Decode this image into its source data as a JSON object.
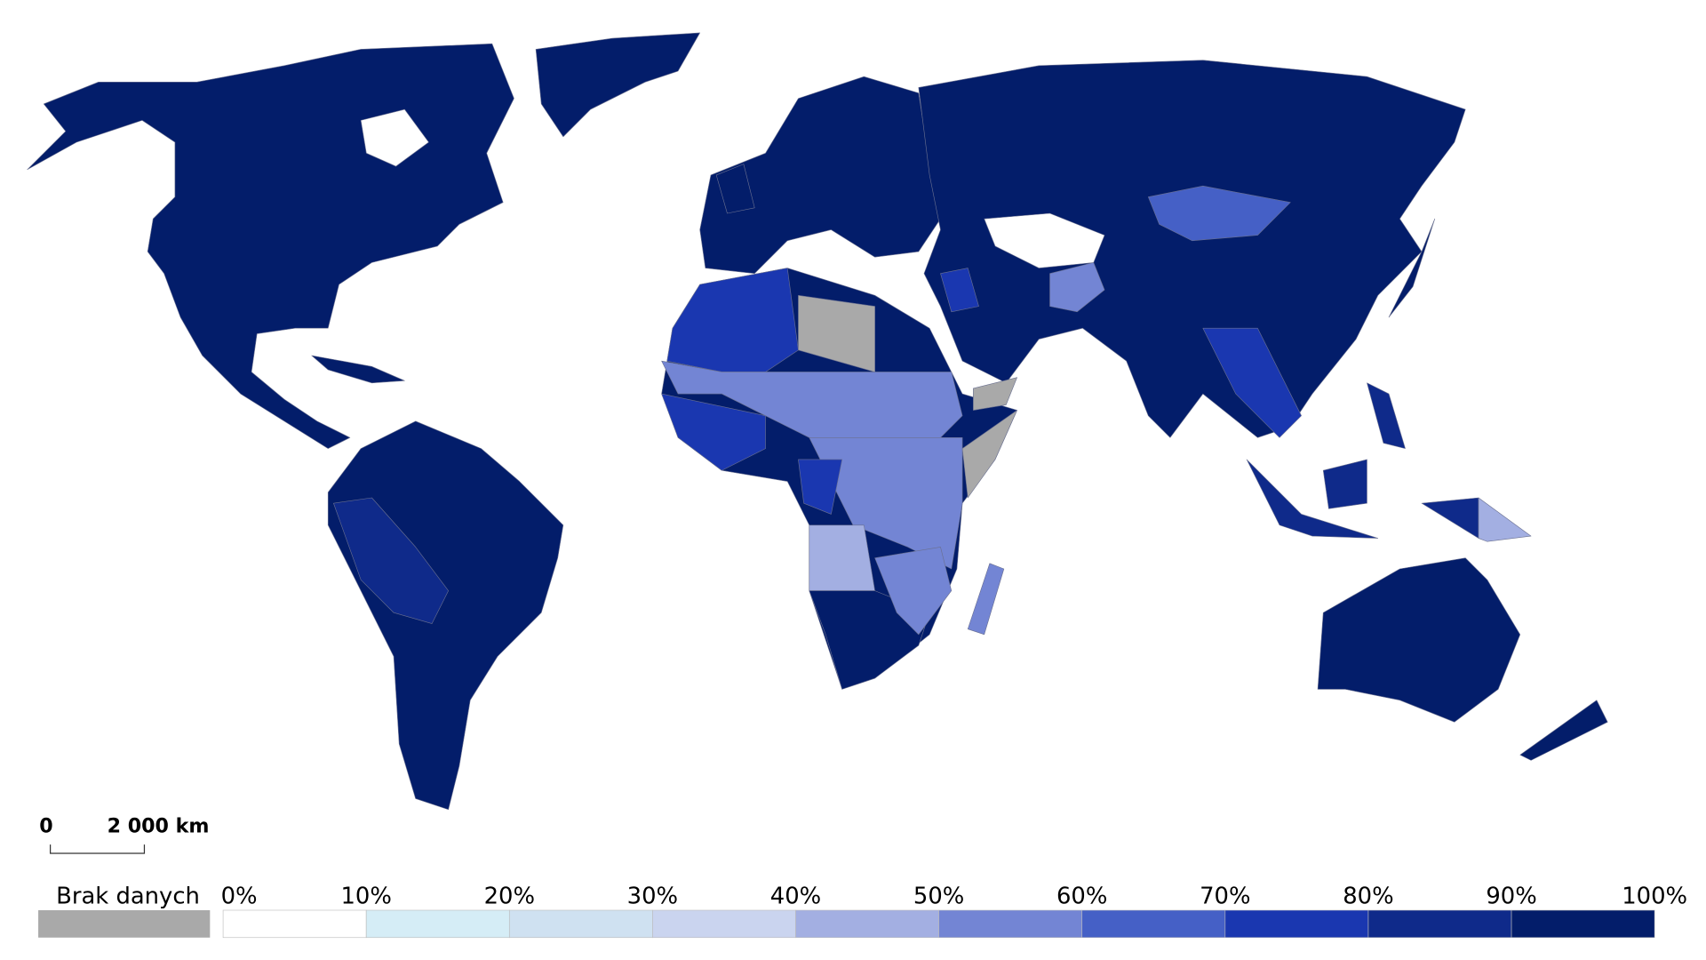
{
  "legend": {
    "no_data": {
      "label": "Brak danych",
      "color": "#a9a9a9"
    },
    "ticks": [
      "0%",
      "10%",
      "20%",
      "30%",
      "40%",
      "50%",
      "60%",
      "70%",
      "80%",
      "90%",
      "100%"
    ],
    "colors": [
      "#ffffff",
      "#d5edf6",
      "#cfe1f1",
      "#cad4ef",
      "#a3afe2",
      "#7385d4",
      "#4560c6",
      "#1a37b0",
      "#0f2a8a",
      "#031d6a"
    ]
  },
  "scale_bar": {
    "start": "0",
    "end": "2 000 km"
  }
}
